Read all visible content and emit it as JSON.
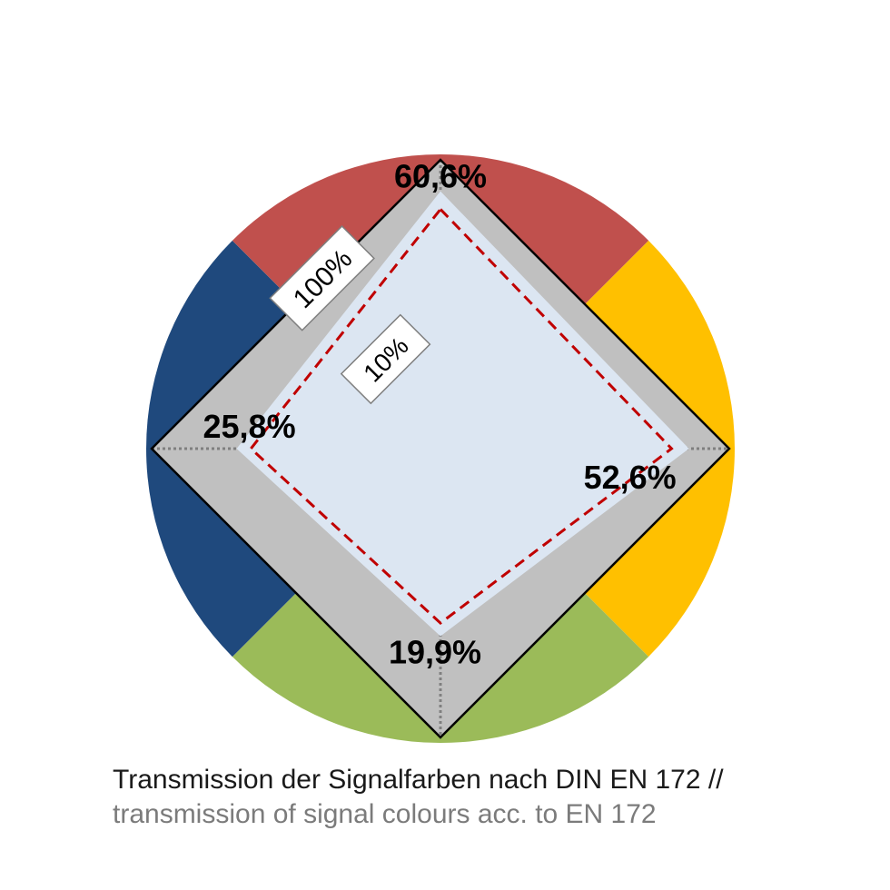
{
  "chart_data": {
    "type": "radar",
    "axes": [
      "red",
      "yellow",
      "green",
      "blue"
    ],
    "scale": "log",
    "range_percent": [
      1,
      100
    ],
    "series": [
      {
        "values": [
          60.6,
          52.6,
          19.9,
          25.8
        ]
      }
    ],
    "value_labels": [
      "60,6%",
      "52,6%",
      "19,9%",
      "25,8%"
    ],
    "gridline_labels": [
      "100%",
      "10%"
    ],
    "sector_colors": {
      "red": "#c0504d",
      "yellow": "#ffc000",
      "green": "#9bbb59",
      "blue": "#1f497d"
    },
    "colors": {
      "outer_band": "#c0c0c0",
      "area_fill": "#dce6f2",
      "dashed_line": "#c00000",
      "frame": "#000000"
    }
  },
  "caption": {
    "line1": "Transmission der Signalfarben nach DIN EN 172 //",
    "line2": "transmission of signal colours acc. to EN 172"
  }
}
